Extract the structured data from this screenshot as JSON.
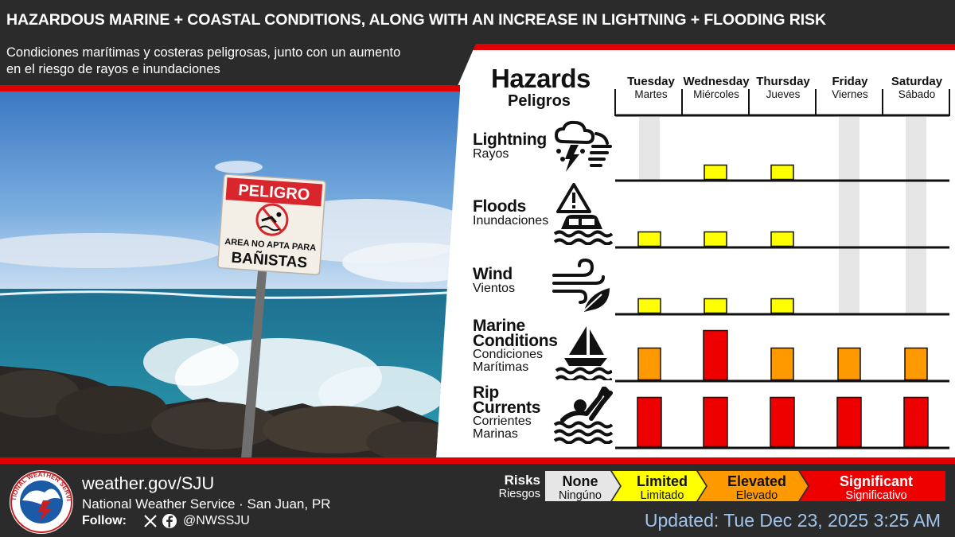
{
  "header": {
    "title": "HAZARDOUS MARINE + COASTAL CONDITIONS, ALONG WITH AN INCREASE IN LIGHTNING +  FLOODING RISK",
    "subtitle_line1": "Condiciones marítimas y costeras peligrosas, junto con un aumento",
    "subtitle_line2": "en el riesgo de rayos e inundaciones"
  },
  "photo": {
    "sign_top": "PELIGRO",
    "sign_mid": "AREA NO APTA PARA",
    "sign_bottom": "BAÑISTAS"
  },
  "chart_data": {
    "type": "table",
    "title": "Hazards",
    "subtitle": "Peligros",
    "days": [
      {
        "en": "Tuesday",
        "es": "Martes"
      },
      {
        "en": "Wednesday",
        "es": "Miércoles"
      },
      {
        "en": "Thursday",
        "es": "Jueves"
      },
      {
        "en": "Friday",
        "es": "Viernes"
      },
      {
        "en": "Saturday",
        "es": "Sábado"
      }
    ],
    "risk_levels": [
      "none",
      "limited",
      "elevated",
      "significant"
    ],
    "hazards": [
      {
        "en": "Lightning",
        "es": "Rayos",
        "icon": "thunderstorm-icon",
        "levels": [
          0,
          1,
          1,
          0,
          0
        ]
      },
      {
        "en": "Floods",
        "es": "Inundaciones",
        "icon": "flooded-car-icon",
        "levels": [
          1,
          1,
          1,
          0,
          0
        ]
      },
      {
        "en": "Wind",
        "es": "Vientos",
        "icon": "wind-leaf-icon",
        "levels": [
          1,
          1,
          1,
          0,
          0
        ]
      },
      {
        "en": "Marine Conditions",
        "es": "Condiciones Marítimas",
        "icon": "sailboat-waves-icon",
        "levels": [
          2,
          3,
          2,
          2,
          2
        ]
      },
      {
        "en": "Rip Currents",
        "es": "Corrientes Marinas",
        "icon": "drowning-swimmer-icon",
        "levels": [
          3,
          3,
          3,
          3,
          3
        ]
      }
    ]
  },
  "legend": {
    "label_en": "Risks",
    "label_es": "Riesgos",
    "items": [
      {
        "en": "None",
        "es": "Ningúno",
        "color": "#e6e6e6"
      },
      {
        "en": "Limited",
        "es": "Limitado",
        "color": "#ffff00"
      },
      {
        "en": "Elevated",
        "es": "Elevado",
        "color": "#ff9900"
      },
      {
        "en": "Significant",
        "es": "Significativo",
        "color": "#ee0000"
      }
    ]
  },
  "footer": {
    "url": "weather.gov/SJU",
    "office": "National Weather Service · San Juan, PR",
    "follow_label": "Follow:",
    "handle": "@NWSSJU",
    "updated": "Updated: Tue Dec 23, 2025 3:25 AM",
    "logo_text": "NATIONAL WEATHER SERVICE"
  },
  "colors": {
    "header_bg": "#2b2b2b",
    "accent_red": "#e00000",
    "limited": "#ffff00",
    "elevated": "#ff9900",
    "significant": "#ee0000",
    "none": "#e6e6e6",
    "updated_text": "#9fc3ea"
  }
}
